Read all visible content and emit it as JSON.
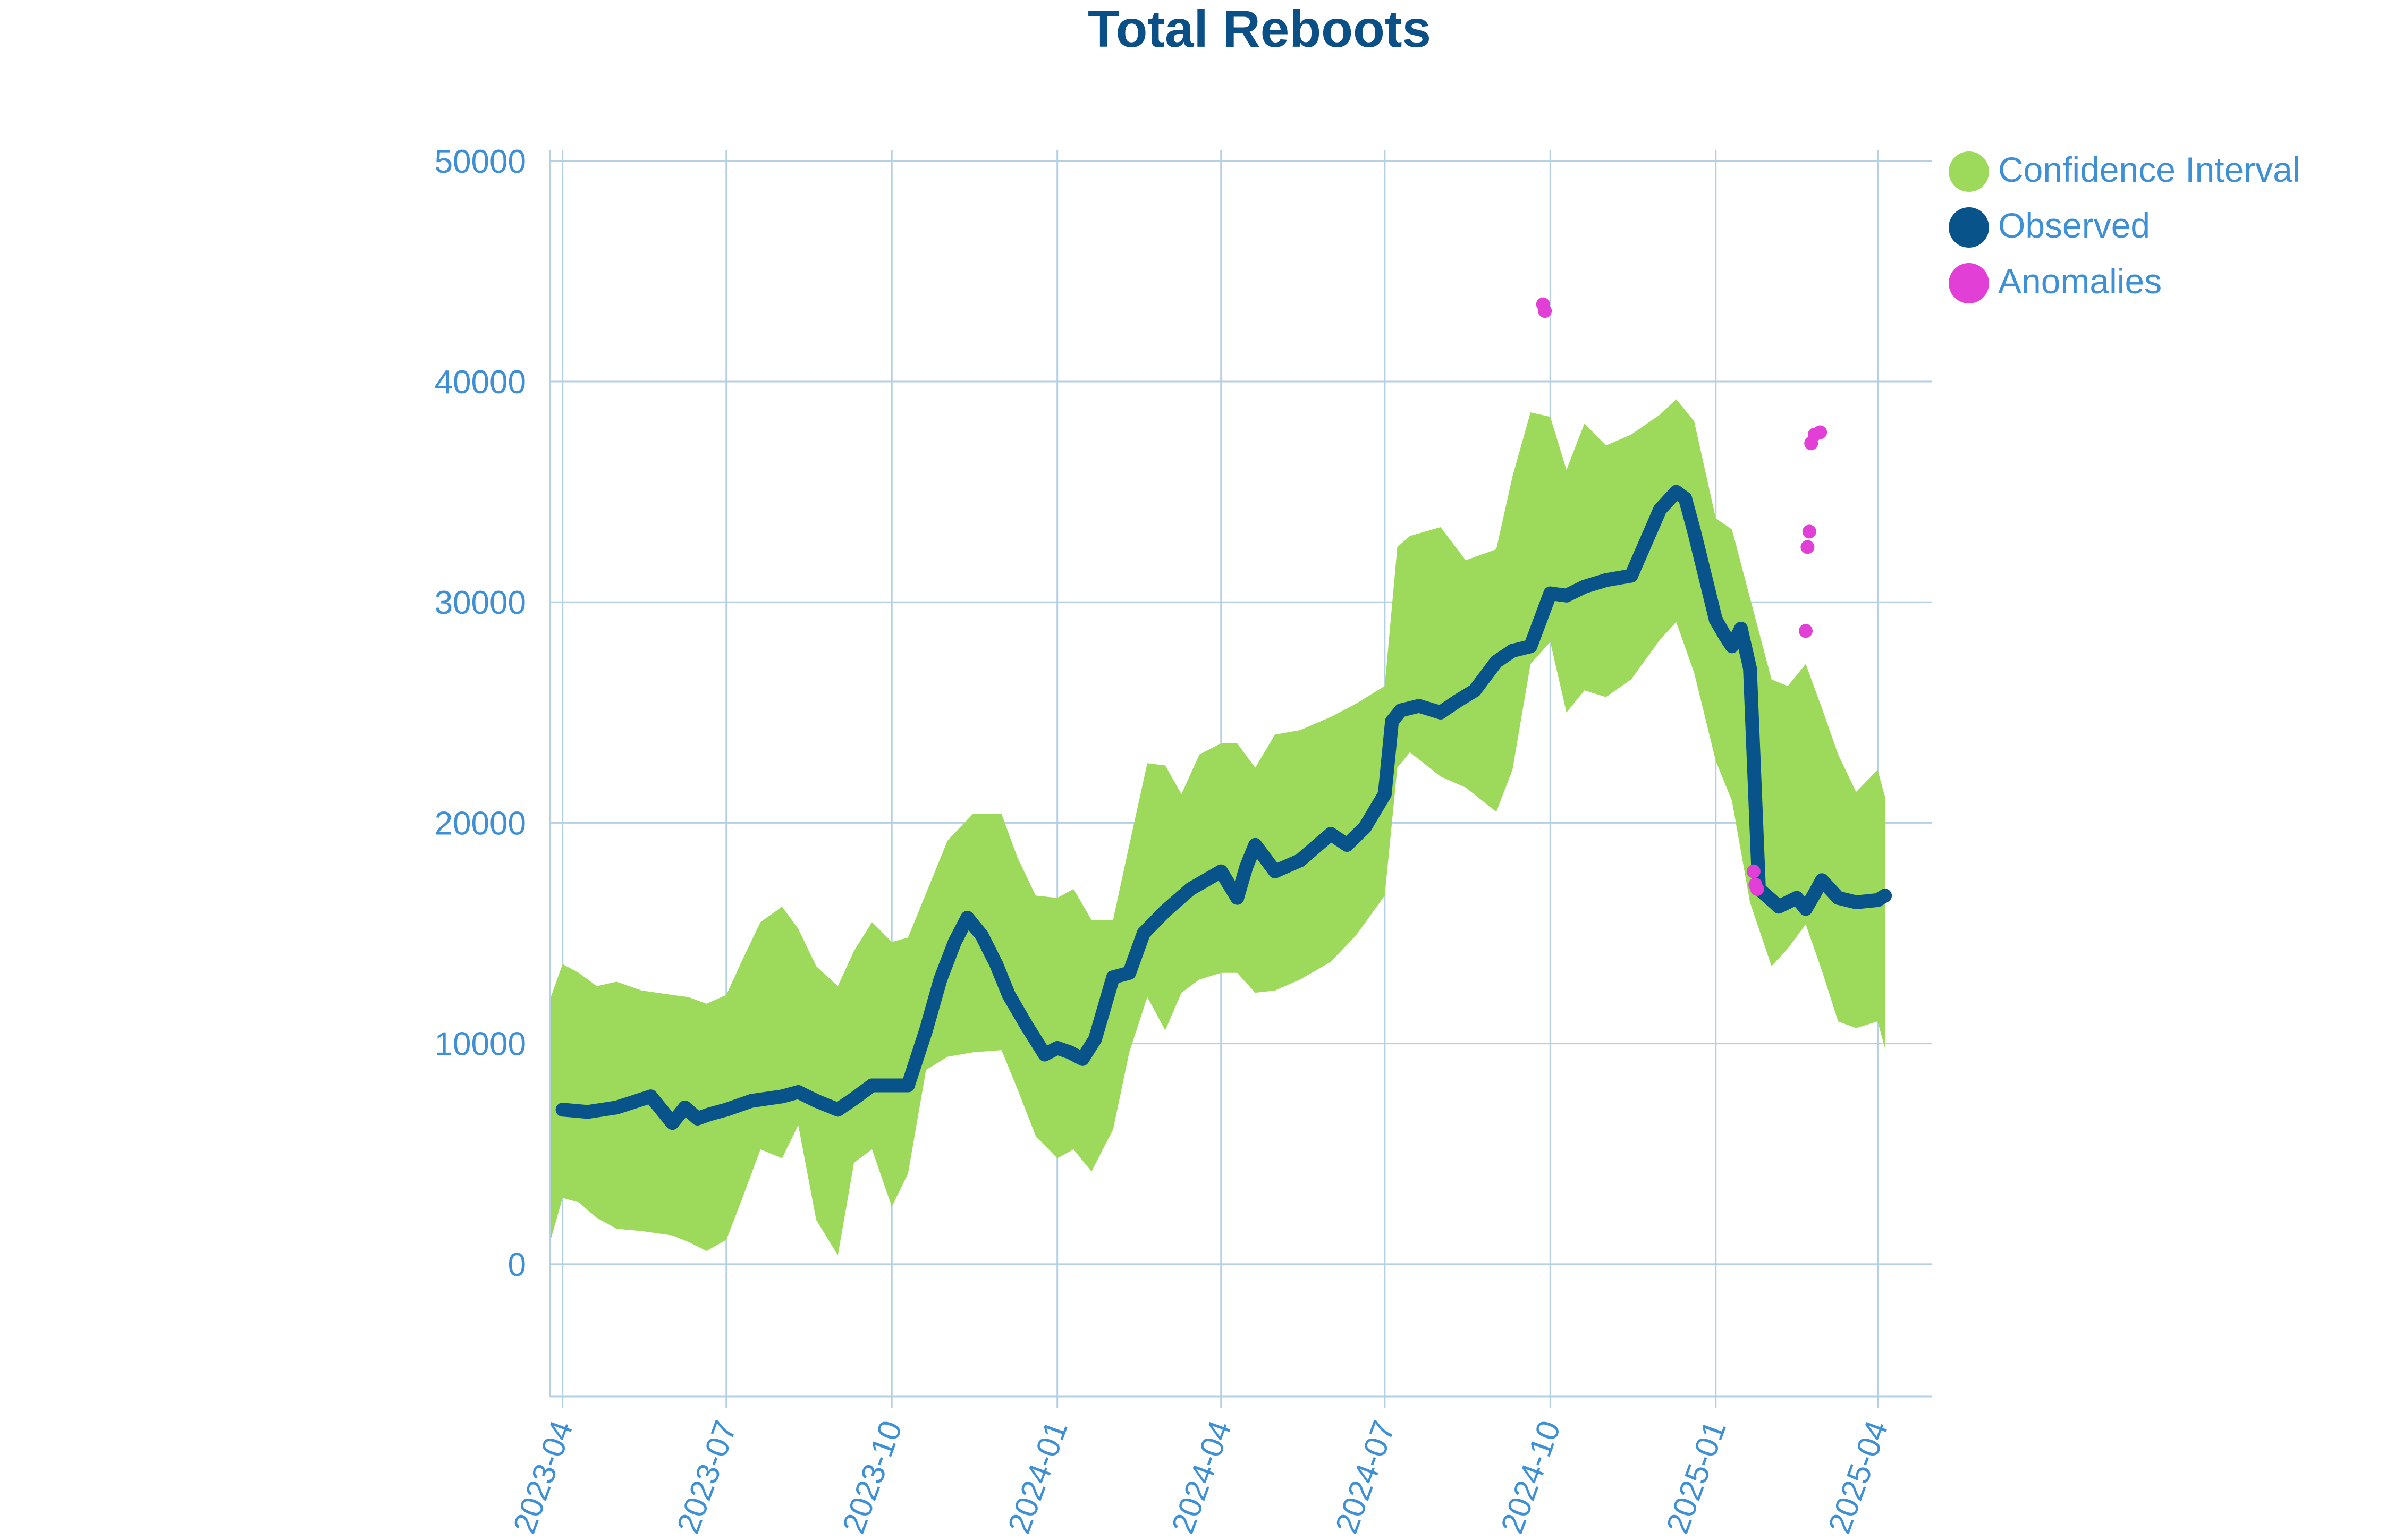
{
  "chart_data": {
    "type": "line",
    "title": "Total Reboots",
    "xlabel": "",
    "ylabel": "",
    "x_type": "date",
    "xlim": [
      "2023-03-25",
      "2025-05-01"
    ],
    "ylim": [
      -6000,
      50500
    ],
    "y_ticks": [
      0,
      10000,
      20000,
      30000,
      40000,
      50000
    ],
    "y_tick_labels": [
      "0",
      "10000",
      "20000",
      "30000",
      "40000",
      "50000"
    ],
    "x_ticks": [
      "2023-04-01",
      "2023-07-01",
      "2023-10-01",
      "2024-01-01",
      "2024-04-01",
      "2024-07-01",
      "2024-10-01",
      "2025-01-01",
      "2025-04-01"
    ],
    "x_tick_labels": [
      "2023-04",
      "2023-07",
      "2023-10",
      "2024-01",
      "2024-04",
      "2024-07",
      "2024-10",
      "2025-01",
      "2025-04"
    ],
    "grid": true,
    "legend_position": "top-right",
    "colors": {
      "title": "#0a4f85",
      "ticks": "#3d8fd6",
      "grid": "#b5cfe3",
      "confidence": "#9dd95b",
      "observed": "#08538a",
      "anomalies": "#e23fd7"
    },
    "legend": [
      "Confidence Interval",
      "Observed",
      "Anomalies"
    ],
    "series": [
      {
        "name": "Confidence Interval",
        "kind": "band",
        "x": [
          "2023-03-25",
          "2023-04-01",
          "2023-04-10",
          "2023-04-20",
          "2023-05-01",
          "2023-05-15",
          "2023-06-01",
          "2023-06-10",
          "2023-06-20",
          "2023-07-01",
          "2023-07-10",
          "2023-07-20",
          "2023-08-01",
          "2023-08-10",
          "2023-08-20",
          "2023-09-01",
          "2023-09-10",
          "2023-09-20",
          "2023-10-01",
          "2023-10-10",
          "2023-10-20",
          "2023-11-01",
          "2023-11-15",
          "2023-12-01",
          "2023-12-10",
          "2023-12-20",
          "2024-01-01",
          "2024-01-10",
          "2024-01-20",
          "2024-02-01",
          "2024-02-10",
          "2024-02-20",
          "2024-03-01",
          "2024-03-10",
          "2024-03-20",
          "2024-04-01",
          "2024-04-10",
          "2024-04-20",
          "2024-05-01",
          "2024-05-15",
          "2024-06-01",
          "2024-06-15",
          "2024-07-01",
          "2024-07-08",
          "2024-07-15",
          "2024-08-01",
          "2024-08-15",
          "2024-09-01",
          "2024-09-10",
          "2024-09-20",
          "2024-10-01",
          "2024-10-10",
          "2024-10-20",
          "2024-11-01",
          "2024-11-15",
          "2024-12-01",
          "2024-12-10",
          "2024-12-20",
          "2025-01-01",
          "2025-01-10",
          "2025-01-20",
          "2025-02-01",
          "2025-02-10",
          "2025-02-20",
          "2025-03-01",
          "2025-03-10",
          "2025-03-20",
          "2025-04-01",
          "2025-04-05"
        ],
        "upper": [
          12000,
          13600,
          13200,
          12600,
          12800,
          12400,
          12200,
          12100,
          11800,
          12200,
          13800,
          15500,
          16200,
          15200,
          13500,
          12600,
          14200,
          15500,
          14600,
          14800,
          16800,
          19200,
          20400,
          20400,
          18400,
          16700,
          16600,
          17000,
          15600,
          15600,
          19000,
          22700,
          22600,
          21300,
          23100,
          23600,
          23600,
          22500,
          24000,
          24200,
          24800,
          25400,
          26200,
          32500,
          33000,
          33400,
          31900,
          32400,
          35700,
          38600,
          38400,
          36000,
          38100,
          37100,
          37600,
          38500,
          39200,
          38200,
          33800,
          33300,
          30200,
          26500,
          26200,
          27200,
          25200,
          23100,
          21400,
          22400,
          21200
        ],
        "lower": [
          1000,
          3000,
          2800,
          2100,
          1600,
          1500,
          1300,
          1000,
          600,
          1100,
          3000,
          5200,
          4800,
          6300,
          2000,
          400,
          4600,
          5200,
          2600,
          4100,
          8800,
          9400,
          9600,
          9700,
          7900,
          5800,
          4800,
          5200,
          4200,
          6100,
          9600,
          12100,
          10600,
          12300,
          12900,
          13200,
          13200,
          12300,
          12400,
          12900,
          13700,
          14900,
          16700,
          22500,
          23200,
          22100,
          21600,
          20500,
          22400,
          27200,
          28200,
          25000,
          26000,
          25700,
          26500,
          28300,
          29100,
          26800,
          22800,
          21000,
          16400,
          13500,
          14300,
          15400,
          13300,
          11000,
          10700,
          11000,
          9800
        ]
      },
      {
        "name": "Observed",
        "kind": "line",
        "x": [
          "2023-04-01",
          "2023-04-15",
          "2023-05-01",
          "2023-05-20",
          "2023-06-01",
          "2023-06-08",
          "2023-06-15",
          "2023-06-22",
          "2023-07-01",
          "2023-07-15",
          "2023-08-01",
          "2023-08-10",
          "2023-08-20",
          "2023-09-01",
          "2023-09-10",
          "2023-09-20",
          "2023-10-01",
          "2023-10-10",
          "2023-10-20",
          "2023-10-28",
          "2023-11-05",
          "2023-11-12",
          "2023-11-20",
          "2023-11-28",
          "2023-12-05",
          "2023-12-15",
          "2023-12-25",
          "2024-01-01",
          "2024-01-08",
          "2024-01-15",
          "2024-01-22",
          "2024-02-01",
          "2024-02-10",
          "2024-02-18",
          "2024-03-01",
          "2024-03-15",
          "2024-04-01",
          "2024-04-10",
          "2024-04-15",
          "2024-04-20",
          "2024-05-01",
          "2024-05-15",
          "2024-06-01",
          "2024-06-10",
          "2024-06-20",
          "2024-07-01",
          "2024-07-05",
          "2024-07-10",
          "2024-07-20",
          "2024-08-01",
          "2024-08-10",
          "2024-08-20",
          "2024-09-01",
          "2024-09-10",
          "2024-09-20",
          "2024-10-01",
          "2024-10-10",
          "2024-10-20",
          "2024-11-01",
          "2024-11-15",
          "2024-12-01",
          "2024-12-10",
          "2024-12-15",
          "2024-12-20",
          "2025-01-01",
          "2025-01-06",
          "2025-01-10",
          "2025-01-15",
          "2025-01-20",
          "2025-01-25",
          "2025-02-01",
          "2025-02-05",
          "2025-02-10",
          "2025-02-15",
          "2025-02-20",
          "2025-02-25",
          "2025-03-01",
          "2025-03-10",
          "2025-03-20",
          "2025-04-01",
          "2025-04-05"
        ],
        "y": [
          7000,
          6900,
          7100,
          7600,
          6400,
          7100,
          6600,
          6800,
          7000,
          7400,
          7600,
          7800,
          7400,
          7000,
          7500,
          8100,
          8100,
          8100,
          10600,
          12900,
          14600,
          15700,
          14900,
          13600,
          12200,
          10800,
          9500,
          9800,
          9600,
          9300,
          10200,
          13000,
          13200,
          15000,
          16000,
          17000,
          17800,
          16600,
          18000,
          19000,
          17800,
          18300,
          19500,
          19000,
          19800,
          21300,
          24600,
          25100,
          25300,
          25000,
          25500,
          26000,
          27300,
          27800,
          28000,
          30400,
          30300,
          30700,
          31000,
          31200,
          34200,
          35000,
          34700,
          33200,
          29200,
          28500,
          28000,
          28800,
          27000,
          17000,
          16500,
          16200,
          16400,
          16600,
          16100,
          16800,
          17400,
          16600,
          16400,
          16500,
          16700
        ]
      },
      {
        "name": "Anomalies",
        "kind": "points",
        "x": [
          "2024-09-27",
          "2024-09-28",
          "2025-01-22",
          "2025-01-23",
          "2025-01-24",
          "2025-02-20",
          "2025-02-21",
          "2025-02-22",
          "2025-02-23",
          "2025-02-25",
          "2025-02-28"
        ],
        "y": [
          43500,
          43200,
          17800,
          17200,
          17000,
          28700,
          32500,
          33200,
          37200,
          37600,
          37700
        ]
      }
    ]
  }
}
